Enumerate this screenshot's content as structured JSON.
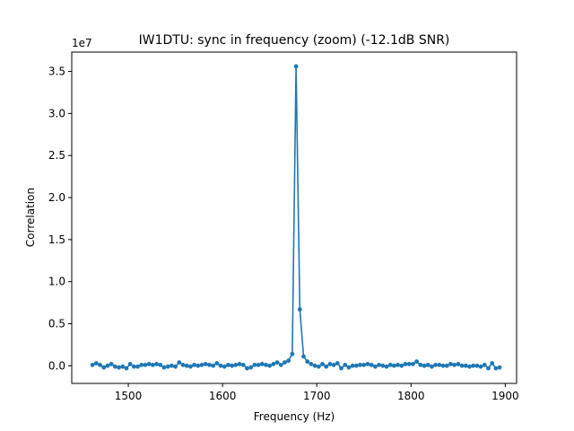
{
  "chart_data": {
    "type": "line",
    "title": "IW1DTU: sync in frequency (zoom) (-12.1dB SNR)",
    "xlabel": "Frequency (Hz)",
    "ylabel": "Correlation",
    "y_multiplier_label": "1e7",
    "xlim": [
      1440,
      1912
    ],
    "ylim": [
      -0.21,
      3.73
    ],
    "xticks": [
      1500,
      1600,
      1700,
      1800,
      1900
    ],
    "yticks": [
      0.0,
      0.5,
      1.0,
      1.5,
      2.0,
      2.5,
      3.0,
      3.5
    ],
    "xtick_labels": [
      "1500",
      "1600",
      "1700",
      "1800",
      "1900"
    ],
    "ytick_labels": [
      "0.0",
      "0.5",
      "1.0",
      "1.5",
      "2.0",
      "2.5",
      "3.0",
      "3.5"
    ],
    "series": [
      {
        "color": "#1f77b4",
        "marker": "circle",
        "x": [
          1462,
          1466,
          1470,
          1474,
          1478,
          1482,
          1486,
          1490,
          1494,
          1498,
          1502,
          1506,
          1510,
          1514,
          1518,
          1522,
          1526,
          1530,
          1534,
          1538,
          1542,
          1546,
          1550,
          1554,
          1558,
          1562,
          1566,
          1570,
          1574,
          1578,
          1582,
          1586,
          1590,
          1594,
          1598,
          1602,
          1606,
          1610,
          1614,
          1618,
          1622,
          1626,
          1630,
          1634,
          1638,
          1642,
          1646,
          1650,
          1654,
          1658,
          1662,
          1666,
          1670,
          1674,
          1678,
          1682,
          1686,
          1690,
          1694,
          1698,
          1702,
          1706,
          1710,
          1714,
          1718,
          1722,
          1726,
          1730,
          1734,
          1738,
          1742,
          1746,
          1750,
          1754,
          1758,
          1762,
          1766,
          1770,
          1774,
          1778,
          1782,
          1786,
          1790,
          1794,
          1798,
          1802,
          1806,
          1810,
          1814,
          1818,
          1822,
          1826,
          1830,
          1834,
          1838,
          1842,
          1846,
          1850,
          1854,
          1858,
          1862,
          1866,
          1870,
          1874,
          1878,
          1882,
          1886,
          1890,
          1894
        ],
        "y": [
          0.01,
          0.03,
          0.01,
          -0.02,
          0.0,
          0.02,
          -0.01,
          -0.02,
          -0.01,
          -0.03,
          0.02,
          -0.01,
          -0.01,
          0.01,
          0.01,
          0.02,
          0.01,
          0.02,
          0.01,
          -0.02,
          -0.01,
          0.0,
          -0.01,
          0.04,
          0.01,
          0.0,
          -0.01,
          0.01,
          0.0,
          0.01,
          0.02,
          0.01,
          0.0,
          0.03,
          0.0,
          -0.01,
          0.01,
          0.0,
          0.01,
          0.02,
          0.01,
          -0.03,
          -0.02,
          0.01,
          0.01,
          0.02,
          0.01,
          0.0,
          0.02,
          0.04,
          0.01,
          0.04,
          0.06,
          0.14,
          3.56,
          0.67,
          0.11,
          0.05,
          0.02,
          0.0,
          -0.01,
          0.02,
          -0.01,
          0.02,
          0.01,
          0.03,
          -0.03,
          0.01,
          -0.02,
          0.0,
          0.0,
          0.01,
          0.01,
          0.02,
          0.01,
          -0.01,
          0.01,
          0.0,
          -0.01,
          0.01,
          0.0,
          0.01,
          0.0,
          0.02,
          0.02,
          0.02,
          0.05,
          0.01,
          0.0,
          0.01,
          -0.01,
          0.01,
          0.01,
          0.0,
          0.0,
          0.02,
          0.01,
          0.02,
          0.0,
          0.0,
          -0.01,
          0.0,
          0.0,
          -0.01,
          0.01,
          -0.03,
          0.03,
          -0.03,
          -0.02
        ]
      }
    ]
  }
}
